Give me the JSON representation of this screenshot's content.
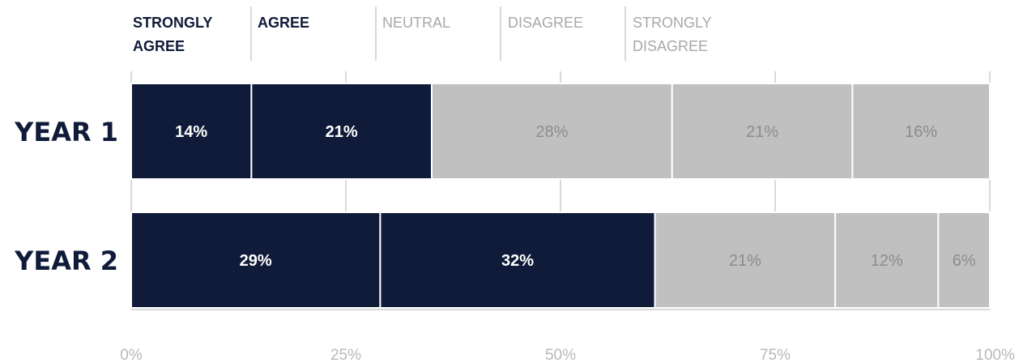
{
  "chart_data": {
    "type": "bar",
    "orientation": "horizontal",
    "stacked": true,
    "categories": [
      "YEAR 1",
      "YEAR 2"
    ],
    "series": [
      {
        "name": "STRONGLY AGREE",
        "values": [
          14,
          29
        ]
      },
      {
        "name": "AGREE",
        "values": [
          21,
          32
        ]
      },
      {
        "name": "NEUTRAL",
        "values": [
          28,
          21
        ]
      },
      {
        "name": "DISAGREE",
        "values": [
          21,
          12
        ]
      },
      {
        "name": "STRONGLY DISAGREE",
        "values": [
          16,
          6
        ]
      }
    ],
    "value_labels": [
      [
        "14%",
        "21%",
        "28%",
        "21%",
        "16%"
      ],
      [
        "29%",
        "32%",
        "21%",
        "12%",
        "6%"
      ]
    ],
    "legend": {
      "placement": "top",
      "entries": [
        {
          "lines": [
            "STRONGLY",
            "AGREE"
          ]
        },
        {
          "lines": [
            "AGREE"
          ]
        },
        {
          "lines": [
            "NEUTRAL"
          ]
        },
        {
          "lines": [
            "DISAGREE"
          ]
        },
        {
          "lines": [
            "STRONGLY",
            "DISAGREE"
          ]
        }
      ]
    },
    "xlim": [
      0,
      100
    ],
    "xticks": [
      0,
      25,
      50,
      75,
      100
    ],
    "xtick_labels": [
      "0%",
      "25%",
      "50%",
      "75%",
      "100%"
    ],
    "grid": true,
    "colors": {
      "dark": "#0f1b38",
      "light": "#c0c0c0",
      "dark_text": "#ffffff",
      "light_text": "#8c8c8c",
      "legend_dark": "#0f1b38",
      "legend_light": "#a8a8a8",
      "grid": "#d9d9d9"
    },
    "dark_series_count": 2
  }
}
